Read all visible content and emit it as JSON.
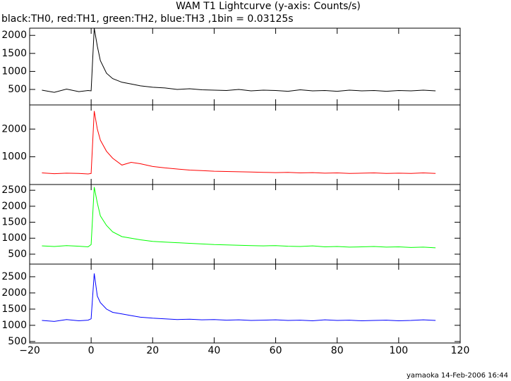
{
  "title": "WAM T1 Lightcurve (y-axis: Counts/s)",
  "subtitle": "black:TH0, red:TH1, green:TH2, blue:TH3 ,1bin = 0.03125s",
  "footer": "yamaoka 14-Feb-2006 16:44",
  "chart_data": [
    {
      "type": "line",
      "x": [
        -16,
        -12,
        -8,
        -4,
        -1,
        0,
        1,
        2,
        3,
        5,
        7,
        10,
        13,
        16,
        20,
        24,
        28,
        32,
        36,
        40,
        44,
        48,
        52,
        56,
        60,
        64,
        68,
        72,
        76,
        80,
        84,
        88,
        92,
        96,
        100,
        104,
        108,
        112
      ],
      "series": [
        {
          "name": "TH0",
          "color": "#000000",
          "values": [
            480,
            420,
            510,
            440,
            470,
            460,
            2200,
            1700,
            1300,
            950,
            800,
            700,
            650,
            600,
            560,
            540,
            500,
            520,
            490,
            480,
            470,
            500,
            460,
            480,
            470,
            450,
            490,
            460,
            470,
            450,
            480,
            460,
            470,
            450,
            470,
            460,
            480,
            460
          ]
        }
      ],
      "xlim": [
        -20,
        120
      ],
      "ylim": [
        70,
        2200
      ],
      "yticks": [
        500,
        1000,
        1500,
        2000
      ]
    },
    {
      "type": "line",
      "x": [
        -16,
        -12,
        -8,
        -4,
        -1,
        0,
        1,
        2,
        3,
        5,
        7,
        10,
        13,
        16,
        20,
        24,
        28,
        32,
        36,
        40,
        44,
        48,
        52,
        56,
        60,
        64,
        68,
        72,
        76,
        80,
        84,
        88,
        92,
        96,
        100,
        104,
        108,
        112
      ],
      "series": [
        {
          "name": "TH1",
          "color": "#ff0000",
          "values": [
            420,
            390,
            410,
            400,
            380,
            400,
            2650,
            2000,
            1600,
            1200,
            950,
            700,
            800,
            750,
            650,
            600,
            560,
            520,
            500,
            480,
            470,
            460,
            450,
            440,
            430,
            440,
            420,
            430,
            410,
            420,
            400,
            410,
            420,
            400,
            410,
            400,
            420,
            400
          ]
        }
      ],
      "xlim": [
        -20,
        120
      ],
      "ylim": [
        0,
        2870
      ],
      "yticks": [
        1000,
        2000
      ]
    },
    {
      "type": "line",
      "x": [
        -16,
        -12,
        -8,
        -4,
        -1,
        0,
        1,
        2,
        3,
        5,
        7,
        10,
        13,
        16,
        20,
        24,
        28,
        32,
        36,
        40,
        44,
        48,
        52,
        56,
        60,
        64,
        68,
        72,
        76,
        80,
        84,
        88,
        92,
        96,
        100,
        104,
        108,
        112
      ],
      "series": [
        {
          "name": "TH2",
          "color": "#00ff00",
          "values": [
            760,
            740,
            770,
            750,
            730,
            800,
            2600,
            2100,
            1700,
            1400,
            1200,
            1050,
            1000,
            950,
            900,
            880,
            860,
            840,
            820,
            800,
            790,
            780,
            770,
            760,
            770,
            750,
            740,
            760,
            730,
            740,
            720,
            730,
            740,
            720,
            730,
            710,
            720,
            700
          ]
        }
      ],
      "xlim": [
        -20,
        120
      ],
      "ylim": [
        190,
        2680
      ],
      "yticks": [
        500,
        1000,
        1500,
        2000,
        2500
      ]
    },
    {
      "type": "line",
      "x": [
        -16,
        -12,
        -8,
        -4,
        -1,
        0,
        1,
        2,
        3,
        5,
        7,
        10,
        13,
        16,
        20,
        24,
        28,
        32,
        36,
        40,
        44,
        48,
        52,
        56,
        60,
        64,
        68,
        72,
        76,
        80,
        84,
        88,
        92,
        96,
        100,
        104,
        108,
        112
      ],
      "series": [
        {
          "name": "TH3",
          "color": "#0000ff",
          "values": [
            1150,
            1120,
            1180,
            1140,
            1160,
            1200,
            2600,
            1900,
            1700,
            1500,
            1400,
            1350,
            1300,
            1250,
            1220,
            1200,
            1180,
            1190,
            1170,
            1180,
            1160,
            1170,
            1150,
            1160,
            1170,
            1150,
            1160,
            1140,
            1170,
            1150,
            1160,
            1140,
            1150,
            1160,
            1140,
            1150,
            1170,
            1150
          ]
        }
      ],
      "xlim": [
        -20,
        120
      ],
      "ylim": [
        455,
        2890
      ],
      "yticks": [
        500,
        1000,
        1500,
        2000,
        2500
      ],
      "xticks": [
        {
          "value": -20,
          "label": "−20"
        },
        0,
        20,
        40,
        60,
        80,
        100,
        120
      ]
    }
  ]
}
